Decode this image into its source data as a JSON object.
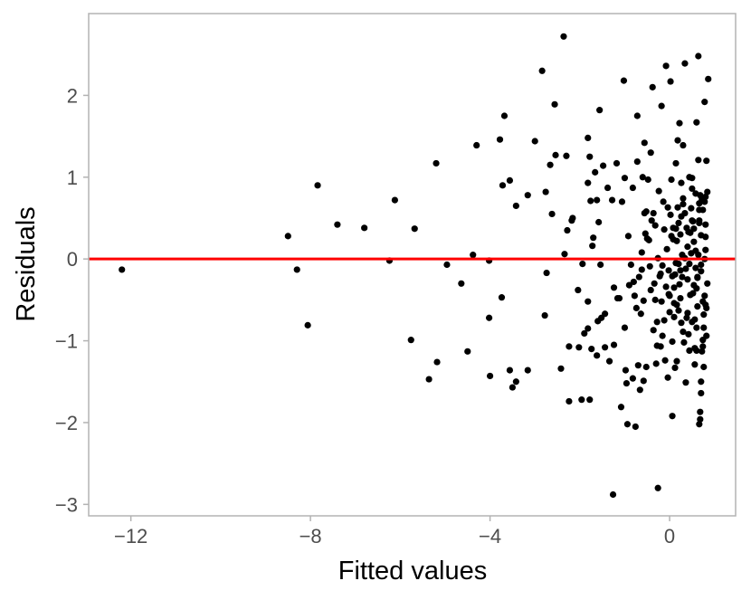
{
  "chart_data": {
    "type": "scatter",
    "title": "",
    "xlabel": "Fitted values",
    "ylabel": "Residuals",
    "xlim": [
      -12.94,
      1.47
    ],
    "ylim": [
      -3.14,
      3.0
    ],
    "x_ticks": [
      -12,
      -8,
      -4,
      0
    ],
    "x_tick_labels": [
      "−12",
      "−8",
      "−4",
      "0"
    ],
    "y_ticks": [
      -3,
      -2,
      -1,
      0,
      1,
      2
    ],
    "y_tick_labels": [
      "−3",
      "−2",
      "−1",
      "0",
      "1",
      "2"
    ],
    "grid": false,
    "reference_line": {
      "y": 0,
      "color": "#ff0000"
    },
    "point_color": "#000000",
    "frame_color": "#b3b3b3",
    "points": [
      [
        -12.2,
        -0.13
      ],
      [
        -8.5,
        0.28
      ],
      [
        -8.3,
        -0.13
      ],
      [
        -8.06,
        -0.81
      ],
      [
        -7.84,
        0.9
      ],
      [
        -7.4,
        0.42
      ],
      [
        -6.8,
        0.38
      ],
      [
        -6.24,
        -0.02
      ],
      [
        -6.12,
        0.72
      ],
      [
        -5.76,
        -0.99
      ],
      [
        -5.68,
        0.37
      ],
      [
        -5.36,
        -1.47
      ],
      [
        -5.18,
        -1.26
      ],
      [
        -5.2,
        1.17
      ],
      [
        -4.96,
        -0.07
      ],
      [
        -4.64,
        -0.3
      ],
      [
        -4.5,
        -1.13
      ],
      [
        -4.38,
        0.05
      ],
      [
        -4.3,
        1.39
      ],
      [
        -4.02,
        -0.02
      ],
      [
        -4.02,
        -0.72
      ],
      [
        -4.0,
        -1.43
      ],
      [
        -3.78,
        1.46
      ],
      [
        -3.72,
        0.9
      ],
      [
        -3.74,
        -0.47
      ],
      [
        -3.68,
        1.75
      ],
      [
        -3.56,
        0.96
      ],
      [
        -3.56,
        -1.36
      ],
      [
        -3.5,
        -1.57
      ],
      [
        -3.42,
        -1.5
      ],
      [
        -3.42,
        0.65
      ],
      [
        -3.16,
        -1.36
      ],
      [
        -3.16,
        0.78
      ],
      [
        -3.0,
        1.44
      ],
      [
        -2.84,
        2.3
      ],
      [
        -2.78,
        -0.69
      ],
      [
        -2.76,
        0.82
      ],
      [
        -2.74,
        -0.17
      ],
      [
        -2.66,
        1.15
      ],
      [
        -2.62,
        0.55
      ],
      [
        -2.56,
        1.89
      ],
      [
        -2.54,
        1.27
      ],
      [
        -2.42,
        -1.34
      ],
      [
        -2.36,
        2.72
      ],
      [
        -2.34,
        0.06
      ],
      [
        -2.3,
        1.26
      ],
      [
        -2.28,
        0.35
      ],
      [
        -2.24,
        -1.07
      ],
      [
        -2.24,
        -1.74
      ],
      [
        -2.18,
        0.47
      ],
      [
        -2.16,
        0.5
      ],
      [
        -2.04,
        -0.38
      ],
      [
        -2.02,
        -1.08
      ],
      [
        -1.96,
        -1.72
      ],
      [
        -1.94,
        -0.06
      ],
      [
        -1.9,
        -0.91
      ],
      [
        -1.82,
        0.93
      ],
      [
        -1.82,
        -0.52
      ],
      [
        -1.82,
        -0.85
      ],
      [
        -1.82,
        1.48
      ],
      [
        -1.78,
        -1.72
      ],
      [
        -1.78,
        1.25
      ],
      [
        -1.76,
        0.71
      ],
      [
        -1.74,
        -1.1
      ],
      [
        -1.72,
        0.16
      ],
      [
        -1.66,
        1.06
      ],
      [
        -1.62,
        0.72
      ],
      [
        -1.6,
        -0.76
      ],
      [
        -1.58,
        0.45
      ],
      [
        -1.56,
        1.82
      ],
      [
        -1.54,
        -0.07
      ],
      [
        -1.48,
        1.14
      ],
      [
        -1.44,
        -0.67
      ],
      [
        -1.44,
        -1.08
      ],
      [
        -1.38,
        0.87
      ],
      [
        -1.28,
        0.72
      ],
      [
        -1.24,
        -0.35
      ],
      [
        -1.24,
        -1.05
      ],
      [
        -1.18,
        1.17
      ],
      [
        -1.12,
        -0.48
      ],
      [
        -1.06,
        0.7
      ],
      [
        -1.02,
        2.18
      ],
      [
        -1.0,
        0.99
      ],
      [
        -1.0,
        -0.84
      ],
      [
        -0.96,
        -1.52
      ],
      [
        -0.94,
        -2.02
      ],
      [
        -0.92,
        0.28
      ],
      [
        -0.86,
        -0.07
      ],
      [
        -0.82,
        0.87
      ],
      [
        -0.8,
        -0.28
      ],
      [
        -0.78,
        -0.45
      ],
      [
        -0.76,
        -2.05
      ],
      [
        -0.72,
        1.75
      ],
      [
        -0.72,
        1.19
      ],
      [
        -0.7,
        -1.3
      ],
      [
        -0.68,
        -0.22
      ],
      [
        -0.64,
        -0.67
      ],
      [
        -0.62,
        -0.13
      ],
      [
        -0.6,
        1.0
      ],
      [
        -0.58,
        -0.51
      ],
      [
        -0.58,
        -1.49
      ],
      [
        -0.56,
        1.42
      ],
      [
        -0.54,
        0.31
      ],
      [
        -0.52,
        0.58
      ],
      [
        -0.5,
        0.25
      ],
      [
        -0.48,
        0.97
      ],
      [
        -0.44,
        -0.09
      ],
      [
        -0.42,
        1.3
      ],
      [
        -0.4,
        0.47
      ],
      [
        -0.38,
        2.1
      ],
      [
        -0.36,
        0.56
      ],
      [
        -0.34,
        -0.3
      ],
      [
        -0.32,
        -0.5
      ],
      [
        -0.3,
        -1.28
      ],
      [
        -0.28,
        -0.77
      ],
      [
        -0.26,
        0.01
      ],
      [
        -0.24,
        0.83
      ],
      [
        -0.2,
        -1.07
      ],
      [
        -0.2,
        -0.18
      ],
      [
        -0.18,
        1.87
      ],
      [
        -0.18,
        -0.52
      ],
      [
        -0.16,
        -0.08
      ],
      [
        -0.14,
        0.7
      ],
      [
        -0.12,
        -0.75
      ],
      [
        -0.1,
        -1.24
      ],
      [
        -0.08,
        2.36
      ],
      [
        -0.06,
        0.12
      ],
      [
        -0.04,
        0.63
      ],
      [
        -0.02,
        -0.43
      ],
      [
        0.0,
        -0.65
      ],
      [
        0.02,
        2.17
      ],
      [
        0.04,
        0.28
      ],
      [
        0.06,
        -1.01
      ],
      [
        0.08,
        0.38
      ],
      [
        0.1,
        -0.35
      ],
      [
        0.12,
        -1.33
      ],
      [
        0.14,
        -0.05
      ],
      [
        0.16,
        0.22
      ],
      [
        0.18,
        1.45
      ],
      [
        0.2,
        -0.63
      ],
      [
        0.22,
        1.66
      ],
      [
        0.24,
        -0.14
      ],
      [
        0.26,
        0.52
      ],
      [
        0.28,
        -0.22
      ],
      [
        0.3,
        0.74
      ],
      [
        0.32,
        -1.02
      ],
      [
        0.34,
        2.39
      ],
      [
        0.36,
        -0.12
      ],
      [
        0.38,
        0.38
      ],
      [
        0.4,
        0.15
      ],
      [
        0.42,
        -0.92
      ],
      [
        0.44,
        1.0
      ],
      [
        0.46,
        -0.44
      ],
      [
        0.48,
        0.62
      ],
      [
        0.5,
        -0.77
      ],
      [
        0.52,
        0.46
      ],
      [
        0.54,
        -0.32
      ],
      [
        0.56,
        -1.29
      ],
      [
        0.58,
        0.1
      ],
      [
        0.6,
        1.67
      ],
      [
        0.62,
        -0.58
      ],
      [
        0.64,
        2.48
      ],
      [
        0.66,
        0.44
      ],
      [
        0.68,
        -1.87
      ],
      [
        0.7,
        -0.07
      ],
      [
        0.72,
        0.73
      ],
      [
        0.74,
        -1.07
      ],
      [
        0.76,
        -0.68
      ],
      [
        0.78,
        1.92
      ],
      [
        0.8,
        0.42
      ],
      [
        0.82,
        -0.94
      ],
      [
        0.84,
        -0.3
      ],
      [
        0.86,
        2.2
      ],
      [
        0.1,
        -0.71
      ],
      [
        0.2,
        0.44
      ],
      [
        0.3,
        1.39
      ],
      [
        0.4,
        -0.25
      ],
      [
        0.5,
        0.86
      ],
      [
        0.6,
        -1.12
      ],
      [
        0.7,
        0.29
      ],
      [
        0.8,
        -0.56
      ],
      [
        0.14,
        1.17
      ],
      [
        0.24,
        -0.48
      ],
      [
        0.34,
        0.56
      ],
      [
        0.44,
        -1.12
      ],
      [
        0.54,
        0.21
      ],
      [
        0.64,
        1.21
      ],
      [
        0.74,
        -0.52
      ],
      [
        0.84,
        0.82
      ],
      [
        0.2,
        -0.06
      ],
      [
        0.3,
        0.67
      ],
      [
        0.4,
        -0.66
      ],
      [
        0.5,
        0.99
      ],
      [
        0.6,
        -0.36
      ],
      [
        0.7,
        -1.64
      ],
      [
        0.8,
        0.11
      ],
      [
        0.16,
        -0.56
      ],
      [
        0.26,
        0.93
      ],
      [
        0.36,
        -1.51
      ],
      [
        0.46,
        0.32
      ],
      [
        0.56,
        -0.74
      ],
      [
        0.66,
        0.6
      ],
      [
        0.76,
        -1.32
      ],
      [
        0.06,
        -1.92
      ],
      [
        0.0,
        -0.45
      ],
      [
        0.04,
        0.97
      ],
      [
        0.12,
        -0.19
      ],
      [
        -0.02,
        -0.14
      ],
      [
        -0.26,
        -2.8
      ],
      [
        -1.26,
        -2.88
      ],
      [
        0.66,
        -2.02
      ],
      [
        0.68,
        -1.96
      ],
      [
        0.7,
        -1.5
      ],
      [
        0.72,
        -1.13
      ],
      [
        0.74,
        -0.99
      ],
      [
        0.76,
        -0.84
      ],
      [
        0.78,
        -0.45
      ],
      [
        0.78,
        0.0
      ],
      [
        0.8,
        0.27
      ],
      [
        0.8,
        0.76
      ],
      [
        0.82,
        -0.6
      ],
      [
        0.82,
        1.2
      ],
      [
        0.56,
        -1.09
      ],
      [
        0.6,
        -0.84
      ],
      [
        0.62,
        -0.23
      ],
      [
        0.64,
        0.05
      ],
      [
        0.66,
        0.47
      ],
      [
        0.68,
        0.78
      ],
      [
        0.58,
        -0.11
      ],
      [
        0.52,
        -0.42
      ],
      [
        0.48,
        0.07
      ],
      [
        0.44,
        -0.06
      ],
      [
        0.42,
        0.33
      ],
      [
        0.38,
        -0.72
      ],
      [
        0.34,
        0.01
      ],
      [
        0.3,
        -0.89
      ],
      [
        0.28,
        0.05
      ],
      [
        0.26,
        -0.78
      ],
      [
        0.24,
        0.3
      ],
      [
        0.22,
        -0.31
      ],
      [
        0.18,
        0.63
      ],
      [
        0.16,
        -1.25
      ],
      [
        0.14,
        0.37
      ],
      [
        0.1,
        -0.54
      ],
      [
        0.08,
        0.24
      ],
      [
        0.06,
        -0.21
      ],
      [
        0.02,
        0.54
      ],
      [
        -0.04,
        -1.45
      ],
      [
        -0.08,
        -0.34
      ],
      [
        -0.12,
        0.36
      ],
      [
        -0.16,
        -0.94
      ],
      [
        -0.22,
        -0.21
      ],
      [
        -0.28,
        -1.06
      ],
      [
        -0.32,
        0.41
      ],
      [
        -0.36,
        -0.87
      ],
      [
        -0.42,
        -0.38
      ],
      [
        -0.46,
        0.23
      ],
      [
        -0.52,
        -1.32
      ],
      [
        -0.56,
        0.56
      ],
      [
        -0.62,
        0.08
      ],
      [
        -0.66,
        -1.6
      ],
      [
        -0.74,
        -0.6
      ],
      [
        -0.82,
        -1.46
      ],
      [
        -0.9,
        -0.32
      ],
      [
        -0.98,
        -1.36
      ],
      [
        -1.08,
        -1.81
      ],
      [
        -1.16,
        -0.48
      ],
      [
        -1.34,
        -1.25
      ],
      [
        -1.52,
        -0.72
      ],
      [
        -1.62,
        -1.18
      ],
      [
        -1.7,
        0.26
      ],
      [
        0.5,
        0.47
      ],
      [
        0.54,
        0.37
      ],
      [
        0.58,
        0.8
      ],
      [
        0.62,
        -0.22
      ],
      [
        0.66,
        0.68
      ],
      [
        0.7,
        -0.15
      ],
      [
        0.74,
        0.6
      ],
      [
        0.78,
        0.7
      ]
    ]
  }
}
